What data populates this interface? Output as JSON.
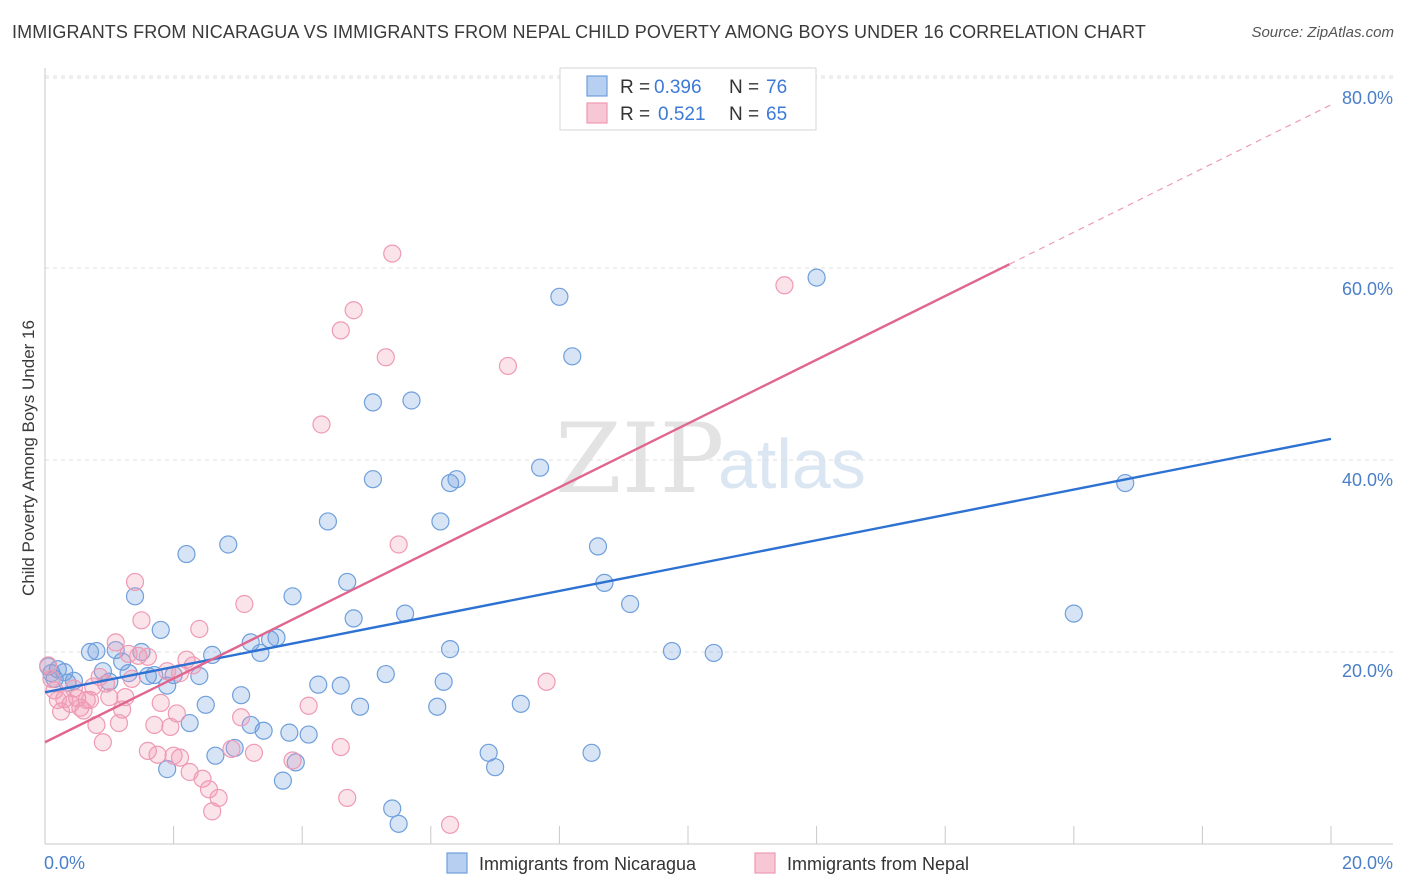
{
  "header": {
    "title": "IMMIGRANTS FROM NICARAGUA VS IMMIGRANTS FROM NEPAL CHILD POVERTY AMONG BOYS UNDER 16 CORRELATION CHART",
    "source": "Source: ZipAtlas.com"
  },
  "watermark": {
    "zip": "ZIP",
    "atlas": "atlas"
  },
  "colors": {
    "nicaragua": "#6f9fdc",
    "nicaragua_line": "#2d72d2",
    "nepal": "#ef9ab4",
    "nepal_line": "#e0668f",
    "tick": "#4a7fc8",
    "grid": "#dedede"
  },
  "legend": {
    "items": [
      {
        "r_label": "R =",
        "r_value": "0.396",
        "n_label": "N =",
        "n_value": "76"
      },
      {
        "r_label": "R =",
        "r_value": "0.521",
        "n_label": "N =",
        "n_value": "65"
      }
    ]
  },
  "chart_data": {
    "type": "scatter",
    "title": "IMMIGRANTS FROM NICARAGUA VS IMMIGRANTS FROM NEPAL CHILD POVERTY AMONG BOYS UNDER 16 CORRELATION CHART",
    "xlabel": "",
    "ylabel": "Child Poverty Among Boys Under 16",
    "xlim": [
      0,
      20
    ],
    "ylim": [
      0,
      80
    ],
    "x_tick_labels": [
      "0.0%",
      "20.0%"
    ],
    "y_tick_labels": [
      "20.0%",
      "40.0%",
      "60.0%",
      "80.0%"
    ],
    "y_ticks": [
      20,
      40,
      60,
      80
    ],
    "grid": true,
    "legend_position": "top-center",
    "series": [
      {
        "name": "Immigrants from Nicaragua",
        "R": 0.396,
        "N": 76,
        "trend": {
          "x": [
            0,
            20
          ],
          "y": [
            15.8,
            42.2
          ]
        },
        "points": [
          [
            0.05,
            18.5
          ],
          [
            0.1,
            17.8
          ],
          [
            0.15,
            17.2
          ],
          [
            0.2,
            18.2
          ],
          [
            0.3,
            17.9
          ],
          [
            0.35,
            16.8
          ],
          [
            0.45,
            17.0
          ],
          [
            0.7,
            20.0
          ],
          [
            0.8,
            20.1
          ],
          [
            0.9,
            18.0
          ],
          [
            1.0,
            16.9
          ],
          [
            1.1,
            20.2
          ],
          [
            1.2,
            19.0
          ],
          [
            1.3,
            17.8
          ],
          [
            1.4,
            25.8
          ],
          [
            1.5,
            20.0
          ],
          [
            1.6,
            17.5
          ],
          [
            1.7,
            17.6
          ],
          [
            1.8,
            22.3
          ],
          [
            1.9,
            16.5
          ],
          [
            1.9,
            7.8
          ],
          [
            2.0,
            17.6
          ],
          [
            2.2,
            30.2
          ],
          [
            2.25,
            12.6
          ],
          [
            2.4,
            17.5
          ],
          [
            2.5,
            14.5
          ],
          [
            2.6,
            19.7
          ],
          [
            2.65,
            9.2
          ],
          [
            2.85,
            31.2
          ],
          [
            2.95,
            10.0
          ],
          [
            3.05,
            15.5
          ],
          [
            3.2,
            21.0
          ],
          [
            3.2,
            12.4
          ],
          [
            3.35,
            19.9
          ],
          [
            3.4,
            11.8
          ],
          [
            3.5,
            21.3
          ],
          [
            3.6,
            21.5
          ],
          [
            3.7,
            6.6
          ],
          [
            3.8,
            11.6
          ],
          [
            3.85,
            25.8
          ],
          [
            3.9,
            8.5
          ],
          [
            4.1,
            11.4
          ],
          [
            4.25,
            16.6
          ],
          [
            4.4,
            33.6
          ],
          [
            4.6,
            16.5
          ],
          [
            4.7,
            27.3
          ],
          [
            4.8,
            23.5
          ],
          [
            4.9,
            14.3
          ],
          [
            5.1,
            46.0
          ],
          [
            5.1,
            38.0
          ],
          [
            5.3,
            17.7
          ],
          [
            5.4,
            3.7
          ],
          [
            5.5,
            2.1
          ],
          [
            5.6,
            24.0
          ],
          [
            5.7,
            46.2
          ],
          [
            6.1,
            14.3
          ],
          [
            6.2,
            16.9
          ],
          [
            6.3,
            20.3
          ],
          [
            6.3,
            37.6
          ],
          [
            6.4,
            38.0
          ],
          [
            6.15,
            33.6
          ],
          [
            6.9,
            9.5
          ],
          [
            7.0,
            8.0
          ],
          [
            7.4,
            14.6
          ],
          [
            7.7,
            39.2
          ],
          [
            8.0,
            57.0
          ],
          [
            8.2,
            50.8
          ],
          [
            8.5,
            9.5
          ],
          [
            8.6,
            31.0
          ],
          [
            8.7,
            27.2
          ],
          [
            9.1,
            25.0
          ],
          [
            9.75,
            20.1
          ],
          [
            10.4,
            19.9
          ],
          [
            12.0,
            59.0
          ],
          [
            16.0,
            24.0
          ],
          [
            16.8,
            37.6
          ]
        ]
      },
      {
        "name": "Immigrants from Nepal",
        "R": 0.521,
        "N": 65,
        "trend": {
          "x": [
            0,
            15.0
          ],
          "y": [
            10.6,
            60.4
          ]
        },
        "trend_dashed": {
          "x": [
            15.0,
            20
          ],
          "y": [
            60.4,
            77.0
          ]
        },
        "points": [
          [
            0.05,
            18.6
          ],
          [
            0.1,
            17.2
          ],
          [
            0.2,
            15.0
          ],
          [
            0.25,
            13.8
          ],
          [
            0.3,
            15.1
          ],
          [
            0.4,
            14.6
          ],
          [
            0.5,
            15.2
          ],
          [
            0.55,
            14.2
          ],
          [
            0.6,
            13.9
          ],
          [
            0.7,
            15.0
          ],
          [
            0.75,
            16.4
          ],
          [
            0.8,
            12.4
          ],
          [
            0.85,
            17.4
          ],
          [
            0.9,
            10.6
          ],
          [
            0.95,
            16.7
          ],
          [
            1.0,
            15.3
          ],
          [
            1.1,
            21.0
          ],
          [
            1.15,
            12.6
          ],
          [
            1.2,
            14.0
          ],
          [
            1.3,
            19.8
          ],
          [
            1.35,
            17.2
          ],
          [
            1.4,
            27.3
          ],
          [
            1.45,
            19.6
          ],
          [
            1.5,
            23.3
          ],
          [
            1.6,
            19.5
          ],
          [
            1.6,
            9.7
          ],
          [
            1.7,
            12.4
          ],
          [
            1.75,
            9.3
          ],
          [
            1.8,
            14.7
          ],
          [
            1.9,
            18.0
          ],
          [
            1.95,
            12.2
          ],
          [
            2.0,
            9.2
          ],
          [
            2.05,
            13.6
          ],
          [
            2.1,
            9.0
          ],
          [
            2.2,
            19.2
          ],
          [
            2.25,
            7.5
          ],
          [
            2.3,
            18.6
          ],
          [
            2.4,
            22.4
          ],
          [
            2.45,
            6.8
          ],
          [
            2.55,
            5.7
          ],
          [
            2.6,
            3.4
          ],
          [
            2.7,
            4.8
          ],
          [
            2.9,
            9.9
          ],
          [
            3.05,
            13.2
          ],
          [
            3.1,
            25.0
          ],
          [
            3.25,
            9.5
          ],
          [
            3.85,
            8.7
          ],
          [
            4.1,
            14.4
          ],
          [
            4.3,
            43.7
          ],
          [
            4.6,
            53.5
          ],
          [
            4.6,
            10.1
          ],
          [
            4.7,
            4.8
          ],
          [
            4.8,
            55.6
          ],
          [
            5.3,
            50.7
          ],
          [
            5.4,
            61.5
          ],
          [
            5.5,
            31.2
          ],
          [
            6.3,
            2.0
          ],
          [
            7.2,
            49.8
          ],
          [
            7.8,
            16.9
          ],
          [
            11.5,
            58.2
          ],
          [
            0.65,
            15.0
          ],
          [
            0.45,
            16.2
          ],
          [
            1.25,
            15.3
          ],
          [
            0.15,
            16.0
          ],
          [
            2.1,
            17.8
          ]
        ]
      }
    ]
  },
  "bottom_legend": {
    "nicaragua_label": "Immigrants from Nicaragua",
    "nepal_label": "Immigrants from Nepal"
  }
}
